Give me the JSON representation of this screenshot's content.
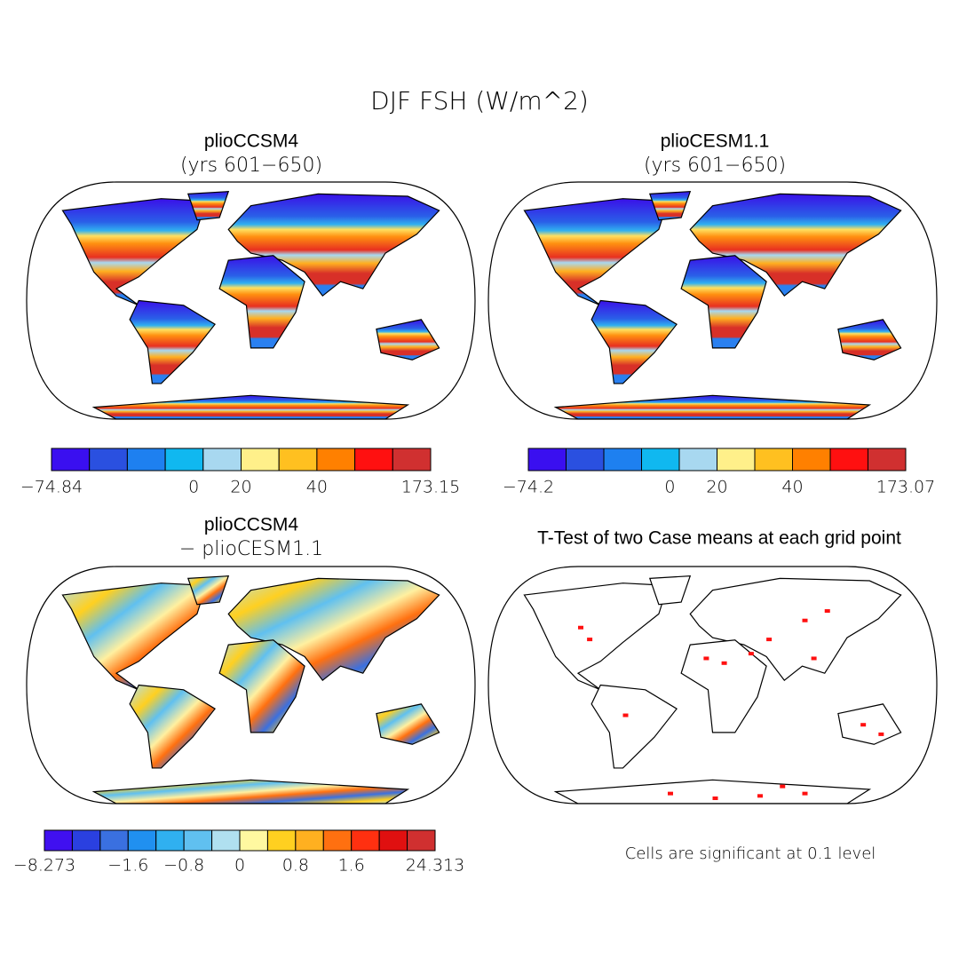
{
  "title": "DJF FSH (W/m^2)",
  "panels": [
    {
      "title": "plioCCSM4",
      "subtitle": "(yrs 601−650)",
      "colorbar": {
        "colors": [
          "#3a0ff0",
          "#2a50e0",
          "#1e80f0",
          "#10b8f0",
          "#a8d8f0",
          "#fff08a",
          "#ffc020",
          "#ff8000",
          "#ff1010",
          "#d03030"
        ],
        "labels": [
          "−74.84",
          "0",
          "20",
          "40",
          "173.15"
        ]
      }
    },
    {
      "title": "plioCESM1.1",
      "subtitle": "(yrs 601−650)",
      "colorbar": {
        "colors": [
          "#3a0ff0",
          "#2a50e0",
          "#1e80f0",
          "#10b8f0",
          "#a8d8f0",
          "#fff08a",
          "#ffc020",
          "#ff8000",
          "#ff1010",
          "#d03030"
        ],
        "labels": [
          "−74.2",
          "0",
          "20",
          "40",
          "173.07"
        ]
      }
    },
    {
      "title": "plioCCSM4",
      "subtitle": "− plioCESM1.1",
      "colorbar": {
        "colors": [
          "#4010f0",
          "#2a40e0",
          "#3a70e0",
          "#2090f0",
          "#30b0f0",
          "#60c0f0",
          "#b0e0f0",
          "#fff8a0",
          "#ffd020",
          "#ffb020",
          "#ff7010",
          "#ff3010",
          "#e01010",
          "#d03030"
        ],
        "labels": [
          "−8.273",
          "−1.6",
          "−0.8",
          "0",
          "0.8",
          "1.6",
          "24.313"
        ]
      }
    },
    {
      "title": "T-Test of two Case means at each grid point",
      "note": "Cells are significant at 0.1 level"
    }
  ]
}
